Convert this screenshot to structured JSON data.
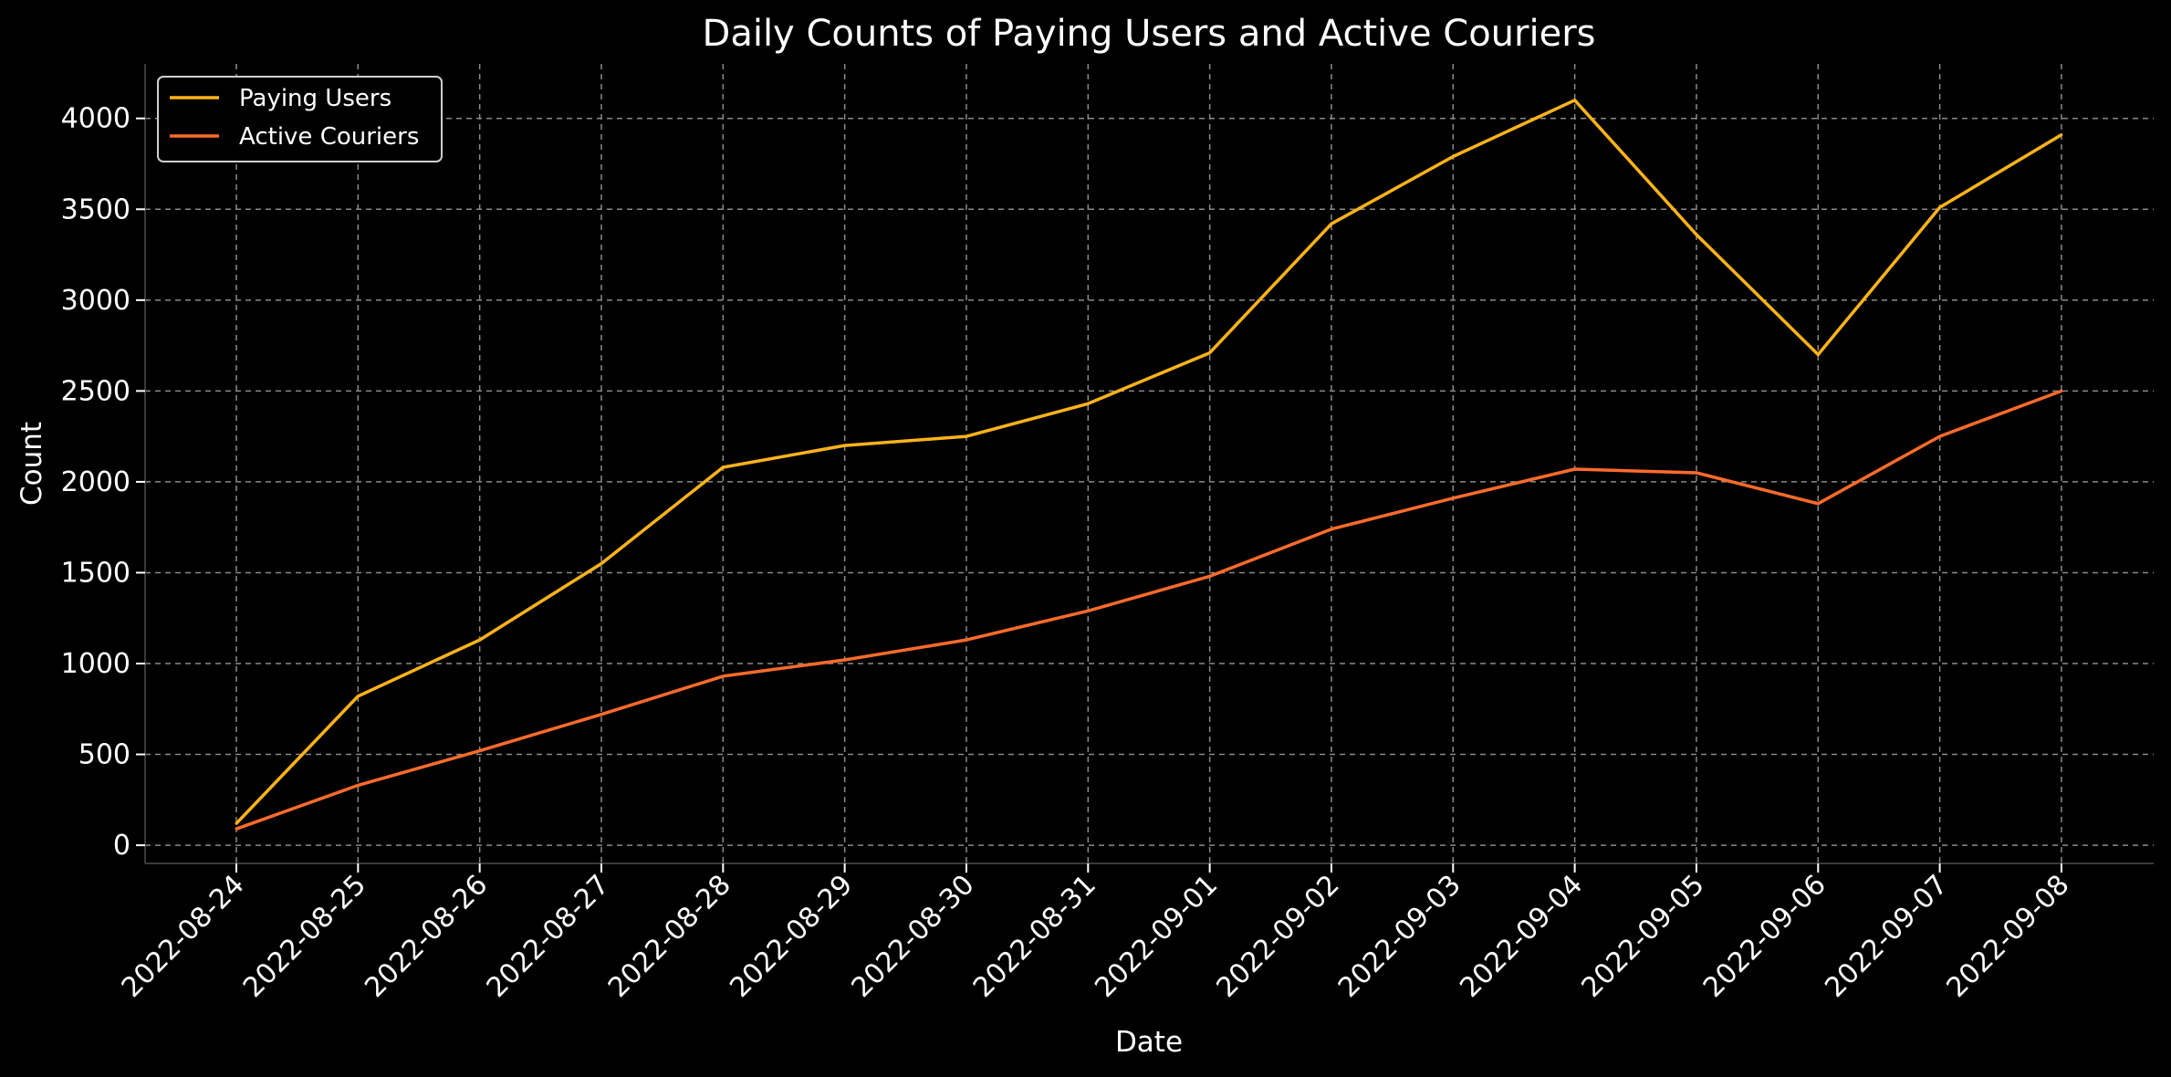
{
  "chart_data": {
    "type": "line",
    "title": "Daily Counts of Paying Users and Active Couriers",
    "xlabel": "Date",
    "ylabel": "Count",
    "categories": [
      "2022-08-24",
      "2022-08-25",
      "2022-08-26",
      "2022-08-27",
      "2022-08-28",
      "2022-08-29",
      "2022-08-30",
      "2022-08-31",
      "2022-09-01",
      "2022-09-02",
      "2022-09-03",
      "2022-09-04",
      "2022-09-05",
      "2022-09-06",
      "2022-09-07",
      "2022-09-08"
    ],
    "yticks": [
      0,
      500,
      1000,
      1500,
      2000,
      2500,
      3000,
      3500,
      4000
    ],
    "ylim": [
      -100,
      4300
    ],
    "grid": true,
    "legend_position": "top-left",
    "series": [
      {
        "name": "Paying Users",
        "color": "#ffb31a",
        "values": [
          120,
          820,
          1130,
          1550,
          2080,
          2200,
          2250,
          2430,
          2710,
          3420,
          3790,
          4100,
          3360,
          2700,
          3510,
          3910
        ]
      },
      {
        "name": "Active Couriers",
        "color": "#ff6b2b",
        "values": [
          90,
          330,
          520,
          720,
          930,
          1020,
          1130,
          1290,
          1480,
          1740,
          1910,
          2070,
          2050,
          1880,
          2250,
          2500
        ]
      }
    ]
  }
}
